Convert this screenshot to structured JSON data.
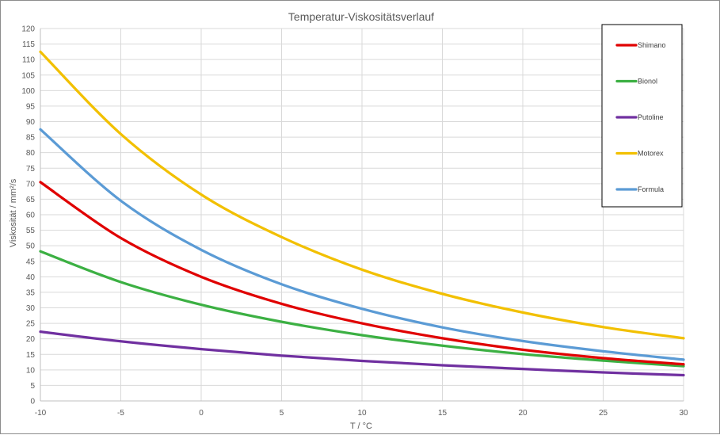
{
  "chart_data": {
    "type": "line",
    "title": "Temperatur-Viskositätsverlauf",
    "xlabel": "T / °C",
    "ylabel": "Viskosität / mm²/s",
    "xlim": [
      -10,
      30
    ],
    "ylim": [
      0,
      120
    ],
    "x_ticks": [
      -10,
      -5,
      0,
      5,
      10,
      15,
      20,
      25,
      30
    ],
    "y_ticks": [
      0,
      5,
      10,
      15,
      20,
      25,
      30,
      35,
      40,
      45,
      50,
      55,
      60,
      65,
      70,
      75,
      80,
      85,
      90,
      95,
      100,
      105,
      110,
      115,
      120
    ],
    "grid": true,
    "legend_position": "top-right",
    "x": [
      -10,
      -5,
      0,
      5,
      10,
      15,
      20,
      25,
      30
    ],
    "series": [
      {
        "name": "Shimano",
        "color": "#e00000",
        "values": [
          70.5,
          52.5,
          40.0,
          31.3,
          25.0,
          20.2,
          16.5,
          13.8,
          11.8
        ]
      },
      {
        "name": "Bionol",
        "color": "#3cb043",
        "values": [
          48.2,
          38.3,
          31.0,
          25.5,
          21.2,
          17.8,
          15.1,
          13.0,
          11.2
        ]
      },
      {
        "name": "Putoline",
        "color": "#7030a0",
        "values": [
          22.3,
          19.2,
          16.7,
          14.6,
          12.9,
          11.5,
          10.3,
          9.2,
          8.3
        ]
      },
      {
        "name": "Motorex",
        "color": "#f2c000",
        "values": [
          112.5,
          86.0,
          66.5,
          52.8,
          42.3,
          34.5,
          28.5,
          23.8,
          20.2
        ]
      },
      {
        "name": "Formula",
        "color": "#5b9bd5",
        "values": [
          87.5,
          64.5,
          48.7,
          37.6,
          29.7,
          23.7,
          19.3,
          16.0,
          13.3
        ]
      }
    ]
  }
}
